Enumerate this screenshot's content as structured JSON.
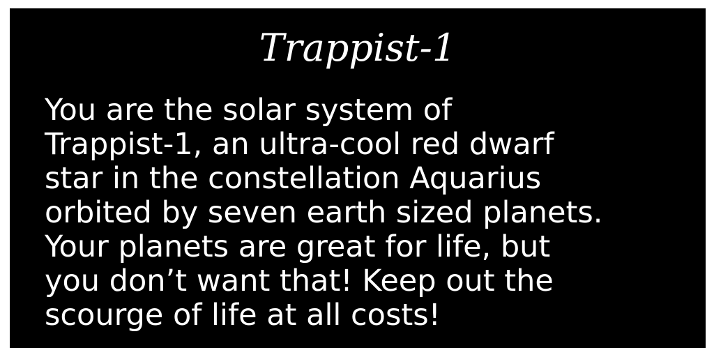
{
  "screen": {
    "title": "Trappist-1",
    "intro_text": "You are the solar system of\nTrappist-1, an ultra-cool red dwarf\nstar in the constellation Aquarius\norbited by seven earth sized planets.\nYour planets are great for life, but\nyou don’t want that!  Keep out the\nscourge of life at all costs!"
  },
  "colors": {
    "background": "#000000",
    "text": "#ffffff",
    "page": "#ffffff"
  }
}
